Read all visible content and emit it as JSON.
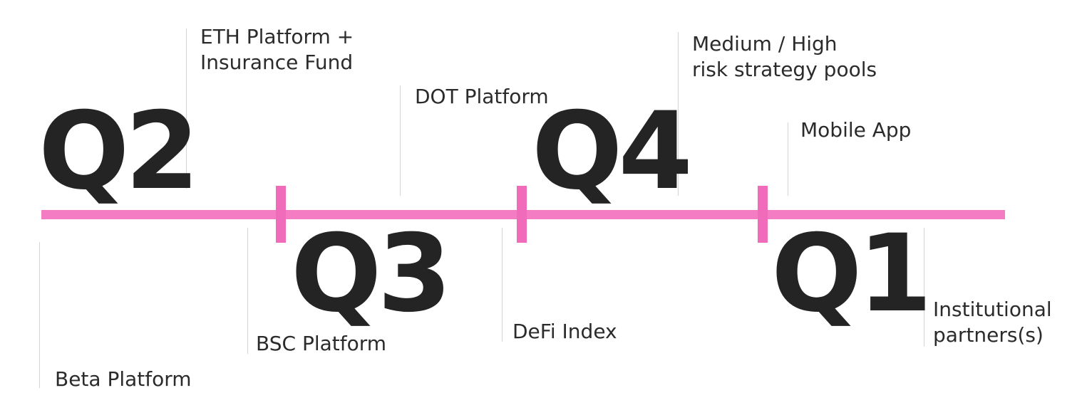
{
  "timeline": {
    "accent_color": "#f47cc3",
    "quarters": {
      "q2": "Q2",
      "q3": "Q3",
      "q4": "Q4",
      "q1": "Q1"
    },
    "milestones": {
      "beta_platform": "Beta Platform",
      "eth_platform": "ETH Platform +\nInsurance Fund",
      "bsc_platform": "BSC Platform",
      "dot_platform": "DOT Platform",
      "defi_index": "DeFi Index",
      "risk_pools": "Medium / High\nrisk strategy pools",
      "mobile_app": "Mobile App",
      "institutional_partners": "Institutional\npartners(s)"
    }
  }
}
